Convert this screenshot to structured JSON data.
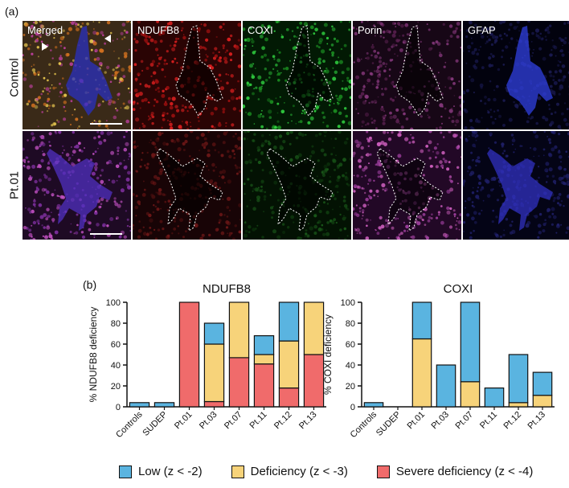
{
  "figure": {
    "panel_a_label": "(a)",
    "panel_b_label": "(b)",
    "rows": [
      "Control",
      "Pt.01"
    ],
    "channels": [
      "Merged",
      "NDUFB8",
      "COXI",
      "Porin",
      "GFAP"
    ]
  },
  "legend": [
    {
      "label": "Low (z < -2)",
      "color": "#5ab4e0"
    },
    {
      "label": "Deficiency (z < -3)",
      "color": "#f7d37a"
    },
    {
      "label": "Severe deficiency (z < -4)",
      "color": "#f06b6b"
    }
  ],
  "colors": {
    "low": "#5ab4e0",
    "deficiency": "#f7d37a",
    "severe": "#f06b6b"
  },
  "chart_data": [
    {
      "type": "bar",
      "title": "NDUFB8",
      "ylabel": "% NDUFB8 deficiency",
      "ylim": [
        0,
        100
      ],
      "yticks": [
        0,
        20,
        40,
        60,
        80,
        100
      ],
      "categories": [
        "Controls",
        "SUDEP",
        "Pt.01",
        "Pt.03",
        "Pt.07",
        "Pt.11",
        "Pt.12",
        "Pt.13"
      ],
      "stacked": true,
      "series": [
        {
          "name": "Severe deficiency (z < -4)",
          "values": [
            0,
            0,
            100,
            5,
            47,
            41,
            18,
            50
          ]
        },
        {
          "name": "Deficiency (z < -3)",
          "values": [
            0,
            0,
            0,
            55,
            53,
            9,
            45,
            50
          ]
        },
        {
          "name": "Low (z < -2)",
          "values": [
            4,
            4,
            0,
            20,
            0,
            18,
            37,
            0
          ]
        }
      ]
    },
    {
      "type": "bar",
      "title": "COXI",
      "ylabel": "% COXI deficiency",
      "ylim": [
        0,
        100
      ],
      "yticks": [
        0,
        20,
        40,
        60,
        80,
        100
      ],
      "categories": [
        "Controls",
        "SUDEP",
        "Pt.01",
        "Pt.03",
        "Pt.07",
        "Pt.11",
        "Pt.12",
        "Pt.13"
      ],
      "stacked": true,
      "series": [
        {
          "name": "Severe deficiency (z < -4)",
          "values": [
            0,
            0,
            0,
            0,
            0,
            0,
            0,
            0
          ]
        },
        {
          "name": "Deficiency (z < -3)",
          "values": [
            0,
            0,
            65,
            0,
            24,
            0,
            4,
            11
          ]
        },
        {
          "name": "Low (z < -2)",
          "values": [
            4,
            0,
            35,
            40,
            76,
            18,
            46,
            22
          ]
        }
      ]
    }
  ]
}
